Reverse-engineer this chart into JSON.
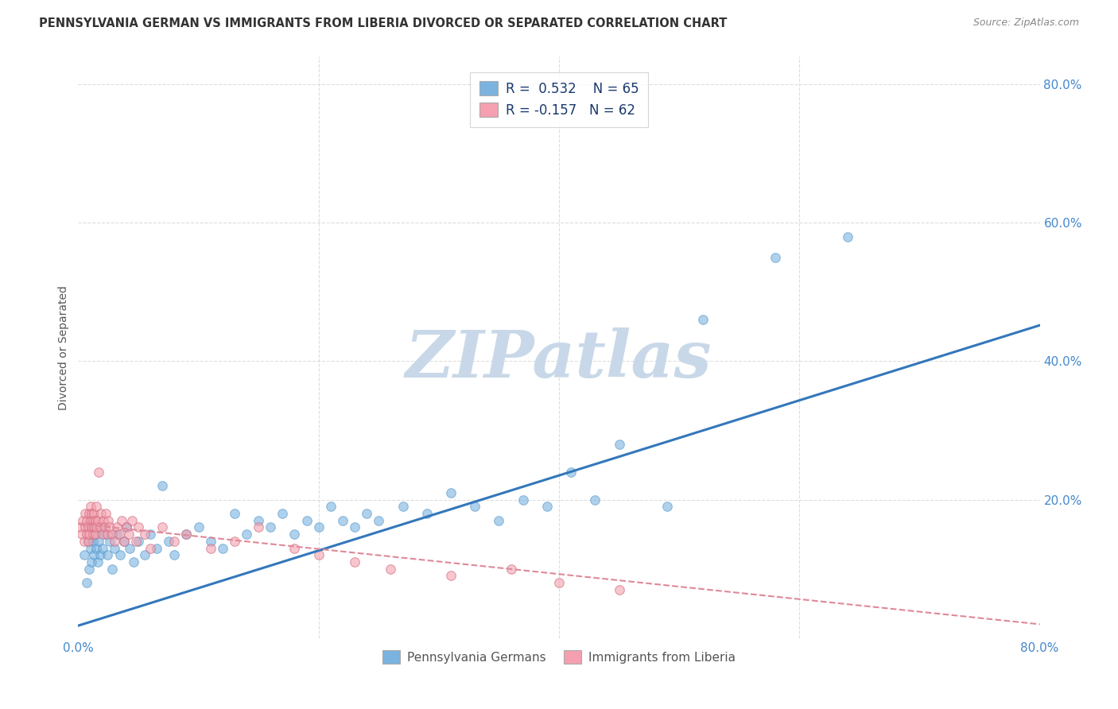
{
  "title": "PENNSYLVANIA GERMAN VS IMMIGRANTS FROM LIBERIA DIVORCED OR SEPARATED CORRELATION CHART",
  "source": "Source: ZipAtlas.com",
  "ylabel": "Divorced or Separated",
  "legend_series": [
    {
      "label": "Pennsylvania Germans",
      "color": "#a8c8f0",
      "R": 0.532,
      "N": 65
    },
    {
      "label": "Immigrants from Liberia",
      "color": "#f4a0b0",
      "R": -0.157,
      "N": 62
    }
  ],
  "blue_scatter_x": [
    0.005,
    0.007,
    0.008,
    0.009,
    0.01,
    0.01,
    0.011,
    0.012,
    0.013,
    0.014,
    0.015,
    0.016,
    0.017,
    0.018,
    0.019,
    0.02,
    0.022,
    0.024,
    0.026,
    0.028,
    0.03,
    0.032,
    0.035,
    0.038,
    0.04,
    0.043,
    0.046,
    0.05,
    0.055,
    0.06,
    0.065,
    0.07,
    0.075,
    0.08,
    0.09,
    0.1,
    0.11,
    0.12,
    0.13,
    0.14,
    0.15,
    0.16,
    0.17,
    0.18,
    0.19,
    0.2,
    0.21,
    0.22,
    0.23,
    0.24,
    0.25,
    0.27,
    0.29,
    0.31,
    0.33,
    0.35,
    0.37,
    0.39,
    0.41,
    0.43,
    0.45,
    0.49,
    0.52,
    0.58,
    0.64
  ],
  "blue_scatter_y": [
    0.12,
    0.08,
    0.14,
    0.1,
    0.13,
    0.16,
    0.11,
    0.14,
    0.12,
    0.15,
    0.13,
    0.11,
    0.14,
    0.12,
    0.16,
    0.13,
    0.15,
    0.12,
    0.14,
    0.1,
    0.13,
    0.15,
    0.12,
    0.14,
    0.16,
    0.13,
    0.11,
    0.14,
    0.12,
    0.15,
    0.13,
    0.22,
    0.14,
    0.12,
    0.15,
    0.16,
    0.14,
    0.13,
    0.18,
    0.15,
    0.17,
    0.16,
    0.18,
    0.15,
    0.17,
    0.16,
    0.19,
    0.17,
    0.16,
    0.18,
    0.17,
    0.19,
    0.18,
    0.21,
    0.19,
    0.17,
    0.2,
    0.19,
    0.24,
    0.2,
    0.28,
    0.19,
    0.46,
    0.55,
    0.58
  ],
  "pink_scatter_x": [
    0.002,
    0.003,
    0.004,
    0.005,
    0.006,
    0.006,
    0.007,
    0.007,
    0.008,
    0.008,
    0.009,
    0.009,
    0.01,
    0.01,
    0.011,
    0.011,
    0.012,
    0.012,
    0.013,
    0.013,
    0.014,
    0.014,
    0.015,
    0.015,
    0.016,
    0.017,
    0.018,
    0.019,
    0.02,
    0.021,
    0.022,
    0.023,
    0.024,
    0.025,
    0.026,
    0.028,
    0.03,
    0.032,
    0.034,
    0.036,
    0.038,
    0.04,
    0.042,
    0.045,
    0.048,
    0.05,
    0.055,
    0.06,
    0.07,
    0.08,
    0.09,
    0.11,
    0.13,
    0.15,
    0.18,
    0.2,
    0.23,
    0.26,
    0.31,
    0.36,
    0.4,
    0.45
  ],
  "pink_scatter_y": [
    0.16,
    0.15,
    0.17,
    0.14,
    0.16,
    0.18,
    0.15,
    0.17,
    0.14,
    0.16,
    0.18,
    0.15,
    0.17,
    0.19,
    0.16,
    0.18,
    0.15,
    0.17,
    0.16,
    0.18,
    0.17,
    0.15,
    0.19,
    0.16,
    0.17,
    0.24,
    0.16,
    0.18,
    0.15,
    0.17,
    0.16,
    0.18,
    0.15,
    0.17,
    0.16,
    0.15,
    0.14,
    0.16,
    0.15,
    0.17,
    0.14,
    0.16,
    0.15,
    0.17,
    0.14,
    0.16,
    0.15,
    0.13,
    0.16,
    0.14,
    0.15,
    0.13,
    0.14,
    0.16,
    0.13,
    0.12,
    0.11,
    0.1,
    0.09,
    0.1,
    0.08,
    0.07
  ],
  "blue_line_x": [
    0.0,
    0.8
  ],
  "blue_line_y": [
    0.018,
    0.452
  ],
  "pink_line_x": [
    0.0,
    0.8
  ],
  "pink_line_y": [
    0.165,
    0.02
  ],
  "xlim": [
    0.0,
    0.8
  ],
  "ylim": [
    0.0,
    0.84
  ],
  "yticks": [
    0.0,
    0.2,
    0.4,
    0.6,
    0.8
  ],
  "ytick_labels": [
    "",
    "20.0%",
    "40.0%",
    "60.0%",
    "80.0%"
  ],
  "xticks": [
    0.0,
    0.2,
    0.4,
    0.6,
    0.8
  ],
  "xtick_labels": [
    "0.0%",
    "",
    "",
    "",
    "80.0%"
  ],
  "background_color": "#ffffff",
  "grid_color": "#dddddd",
  "blue_color": "#7ab3e0",
  "pink_color": "#f4a0b0",
  "blue_line_color": "#3377bb",
  "pink_line_color": "#e08898",
  "watermark": "ZIPatlas",
  "watermark_color": "#c8d8e8"
}
